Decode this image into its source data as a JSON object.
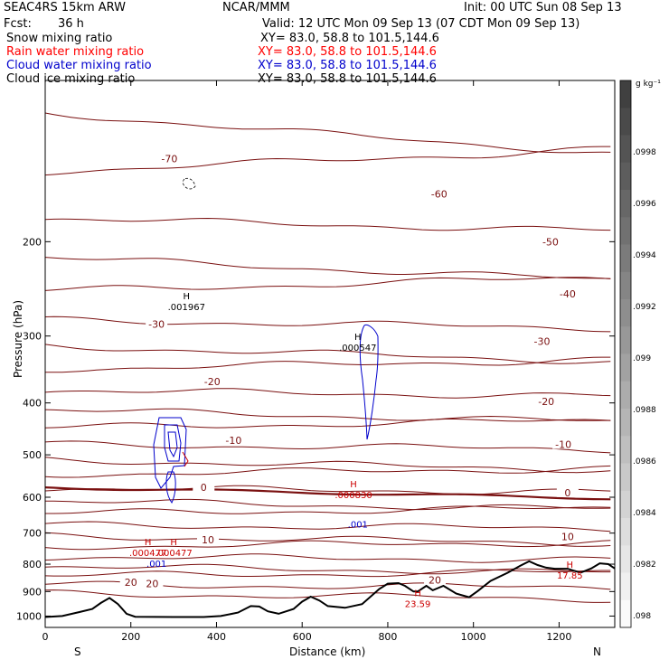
{
  "header": {
    "model": "SEAC4RS 15km ARW",
    "org": "NCAR/MMM",
    "init": "Init: 00 UTC Sun 08 Sep 13",
    "fcst_label": "Fcst:",
    "fcst_value": "36 h",
    "valid": "Valid: 12 UTC Mon 09 Sep 13 (07 CDT Mon 09 Sep 13)"
  },
  "fields": [
    {
      "name": "Snow mixing ratio",
      "xy": "XY=  83.0, 58.8 to 101.5,144.6",
      "color": "#000000"
    },
    {
      "name": "Rain water mixing ratio",
      "xy": "XY=  83.0, 58.8 to 101.5,144.6",
      "color": "#ff0000"
    },
    {
      "name": "Cloud water mixing ratio",
      "xy": "XY=  83.0, 58.8 to 101.5,144.6",
      "color": "#0000cc"
    },
    {
      "name": "Cloud ice mixing ratio",
      "xy": "XY=  83.0, 58.8 to 101.5,144.6",
      "color": "#000000"
    }
  ],
  "colors": {
    "temperature": "#7a1010",
    "temperature_zero": "#7a1010",
    "terrain": "#000000",
    "cloud_water": "#0000cc",
    "rain": "#cc0000"
  },
  "chart_data": {
    "type": "contour cross-section",
    "xlabel": "Distance (km)",
    "ylabel": "Pressure (hPa)",
    "x_ticks": [
      0,
      200,
      400,
      600,
      800,
      1000,
      1200
    ],
    "y_ticks": [
      200,
      300,
      400,
      500,
      600,
      700,
      800,
      900,
      1000
    ],
    "xlim": [
      0,
      1330
    ],
    "ylim": [
      1050,
      100
    ],
    "y_scale": "log",
    "endpoints": {
      "left": "S",
      "right": "N"
    },
    "temperature_isotherms_C": [
      -70,
      -60,
      -50,
      -40,
      -30,
      -20,
      -10,
      0,
      10,
      20
    ],
    "isotherm_labels": [
      {
        "text": "-70",
        "x": 290,
        "p": 140
      },
      {
        "text": "-60",
        "x": 920,
        "p": 163
      },
      {
        "text": "-50",
        "x": 1180,
        "p": 200
      },
      {
        "text": "-40",
        "x": 1220,
        "p": 250
      },
      {
        "text": "-30",
        "x": 260,
        "p": 285
      },
      {
        "text": "-30",
        "x": 1160,
        "p": 307
      },
      {
        "text": "-20",
        "x": 390,
        "p": 365
      },
      {
        "text": "-20",
        "x": 1170,
        "p": 397
      },
      {
        "text": "-10",
        "x": 440,
        "p": 470
      },
      {
        "text": "-10",
        "x": 1210,
        "p": 478
      },
      {
        "text": "0",
        "x": 370,
        "p": 575
      },
      {
        "text": "0",
        "x": 1220,
        "p": 588
      },
      {
        "text": "10",
        "x": 380,
        "p": 720
      },
      {
        "text": "10",
        "x": 1220,
        "p": 710
      },
      {
        "text": "20",
        "x": 200,
        "p": 865
      },
      {
        "text": "20",
        "x": 250,
        "p": 870
      },
      {
        "text": "20",
        "x": 910,
        "p": 857
      }
    ],
    "maxima": [
      {
        "text": ".001967",
        "x": 330,
        "p": 262
      },
      {
        "text": ".000547",
        "x": 730,
        "p": 312
      },
      {
        "text": ".000830",
        "x": 720,
        "p": 588
      },
      {
        "text": ".001",
        "x": 730,
        "p": 668
      },
      {
        "text": ".001",
        "x": 260,
        "p": 790
      },
      {
        "text": ".000477",
        "x": 240,
        "p": 755
      },
      {
        "text": ".000477",
        "x": 300,
        "p": 755
      },
      {
        "text": "17.85",
        "x": 1225,
        "p": 832
      },
      {
        "text": "23.59",
        "x": 870,
        "p": 940
      }
    ],
    "terrain_pressure_hPa": [
      {
        "x": 0,
        "p": 1004
      },
      {
        "x": 40,
        "p": 1000
      },
      {
        "x": 80,
        "p": 983
      },
      {
        "x": 110,
        "p": 970
      },
      {
        "x": 130,
        "p": 945
      },
      {
        "x": 150,
        "p": 925
      },
      {
        "x": 170,
        "p": 950
      },
      {
        "x": 190,
        "p": 990
      },
      {
        "x": 210,
        "p": 1003
      },
      {
        "x": 300,
        "p": 1004
      },
      {
        "x": 370,
        "p": 1004
      },
      {
        "x": 410,
        "p": 1000
      },
      {
        "x": 450,
        "p": 985
      },
      {
        "x": 480,
        "p": 958
      },
      {
        "x": 500,
        "p": 960
      },
      {
        "x": 520,
        "p": 980
      },
      {
        "x": 545,
        "p": 990
      },
      {
        "x": 580,
        "p": 970
      },
      {
        "x": 600,
        "p": 940
      },
      {
        "x": 620,
        "p": 920
      },
      {
        "x": 640,
        "p": 935
      },
      {
        "x": 660,
        "p": 958
      },
      {
        "x": 700,
        "p": 965
      },
      {
        "x": 740,
        "p": 950
      },
      {
        "x": 780,
        "p": 890
      },
      {
        "x": 800,
        "p": 870
      },
      {
        "x": 825,
        "p": 868
      },
      {
        "x": 840,
        "p": 878
      },
      {
        "x": 860,
        "p": 900
      },
      {
        "x": 870,
        "p": 900
      },
      {
        "x": 890,
        "p": 878
      },
      {
        "x": 905,
        "p": 895
      },
      {
        "x": 930,
        "p": 878
      },
      {
        "x": 960,
        "p": 908
      },
      {
        "x": 990,
        "p": 922
      },
      {
        "x": 1010,
        "p": 898
      },
      {
        "x": 1040,
        "p": 860
      },
      {
        "x": 1080,
        "p": 830
      },
      {
        "x": 1110,
        "p": 805
      },
      {
        "x": 1130,
        "p": 790
      },
      {
        "x": 1150,
        "p": 803
      },
      {
        "x": 1170,
        "p": 812
      },
      {
        "x": 1190,
        "p": 816
      },
      {
        "x": 1220,
        "p": 816
      },
      {
        "x": 1250,
        "p": 830
      },
      {
        "x": 1275,
        "p": 815
      },
      {
        "x": 1295,
        "p": 797
      },
      {
        "x": 1315,
        "p": 800
      },
      {
        "x": 1330,
        "p": 815
      }
    ],
    "colorbar": {
      "unit": "g kg⁻¹",
      "labels": [
        ".0998",
        ".0996",
        ".0994",
        ".0992",
        ".099",
        ".0988",
        ".0986",
        ".0984",
        ".0982",
        ".098"
      ]
    }
  }
}
